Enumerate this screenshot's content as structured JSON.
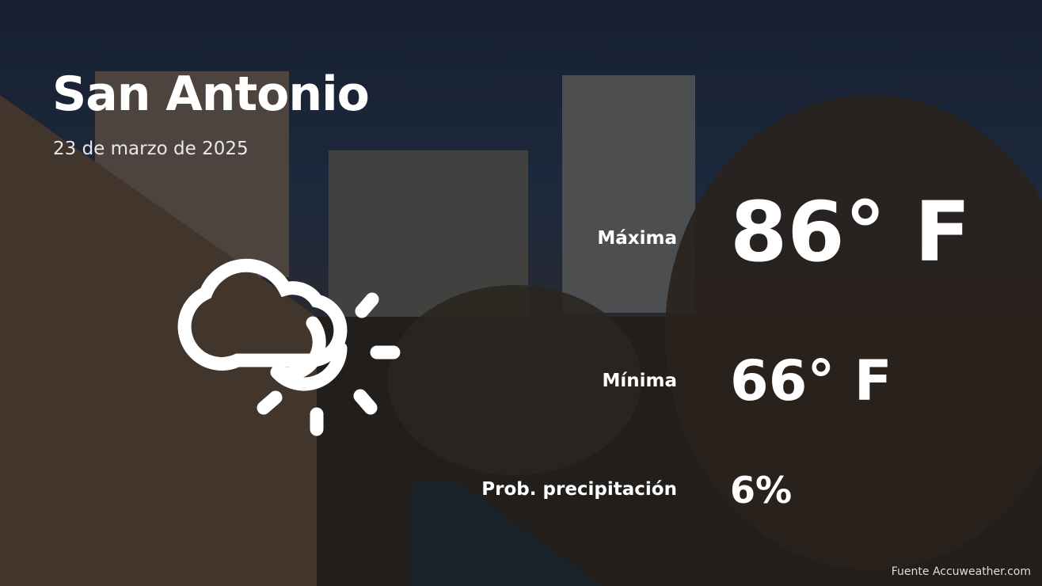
{
  "city": "San Antonio",
  "date": "23 de marzo de 2025",
  "weather_icon": "partly-cloudy-icon",
  "max": {
    "label": "Máxima",
    "value": "86° F"
  },
  "min": {
    "label": "Mínima",
    "value": "66° F"
  },
  "precip": {
    "label": "Prob. precipitación",
    "value": "6%"
  },
  "source": "Fuente Accuweather.com"
}
